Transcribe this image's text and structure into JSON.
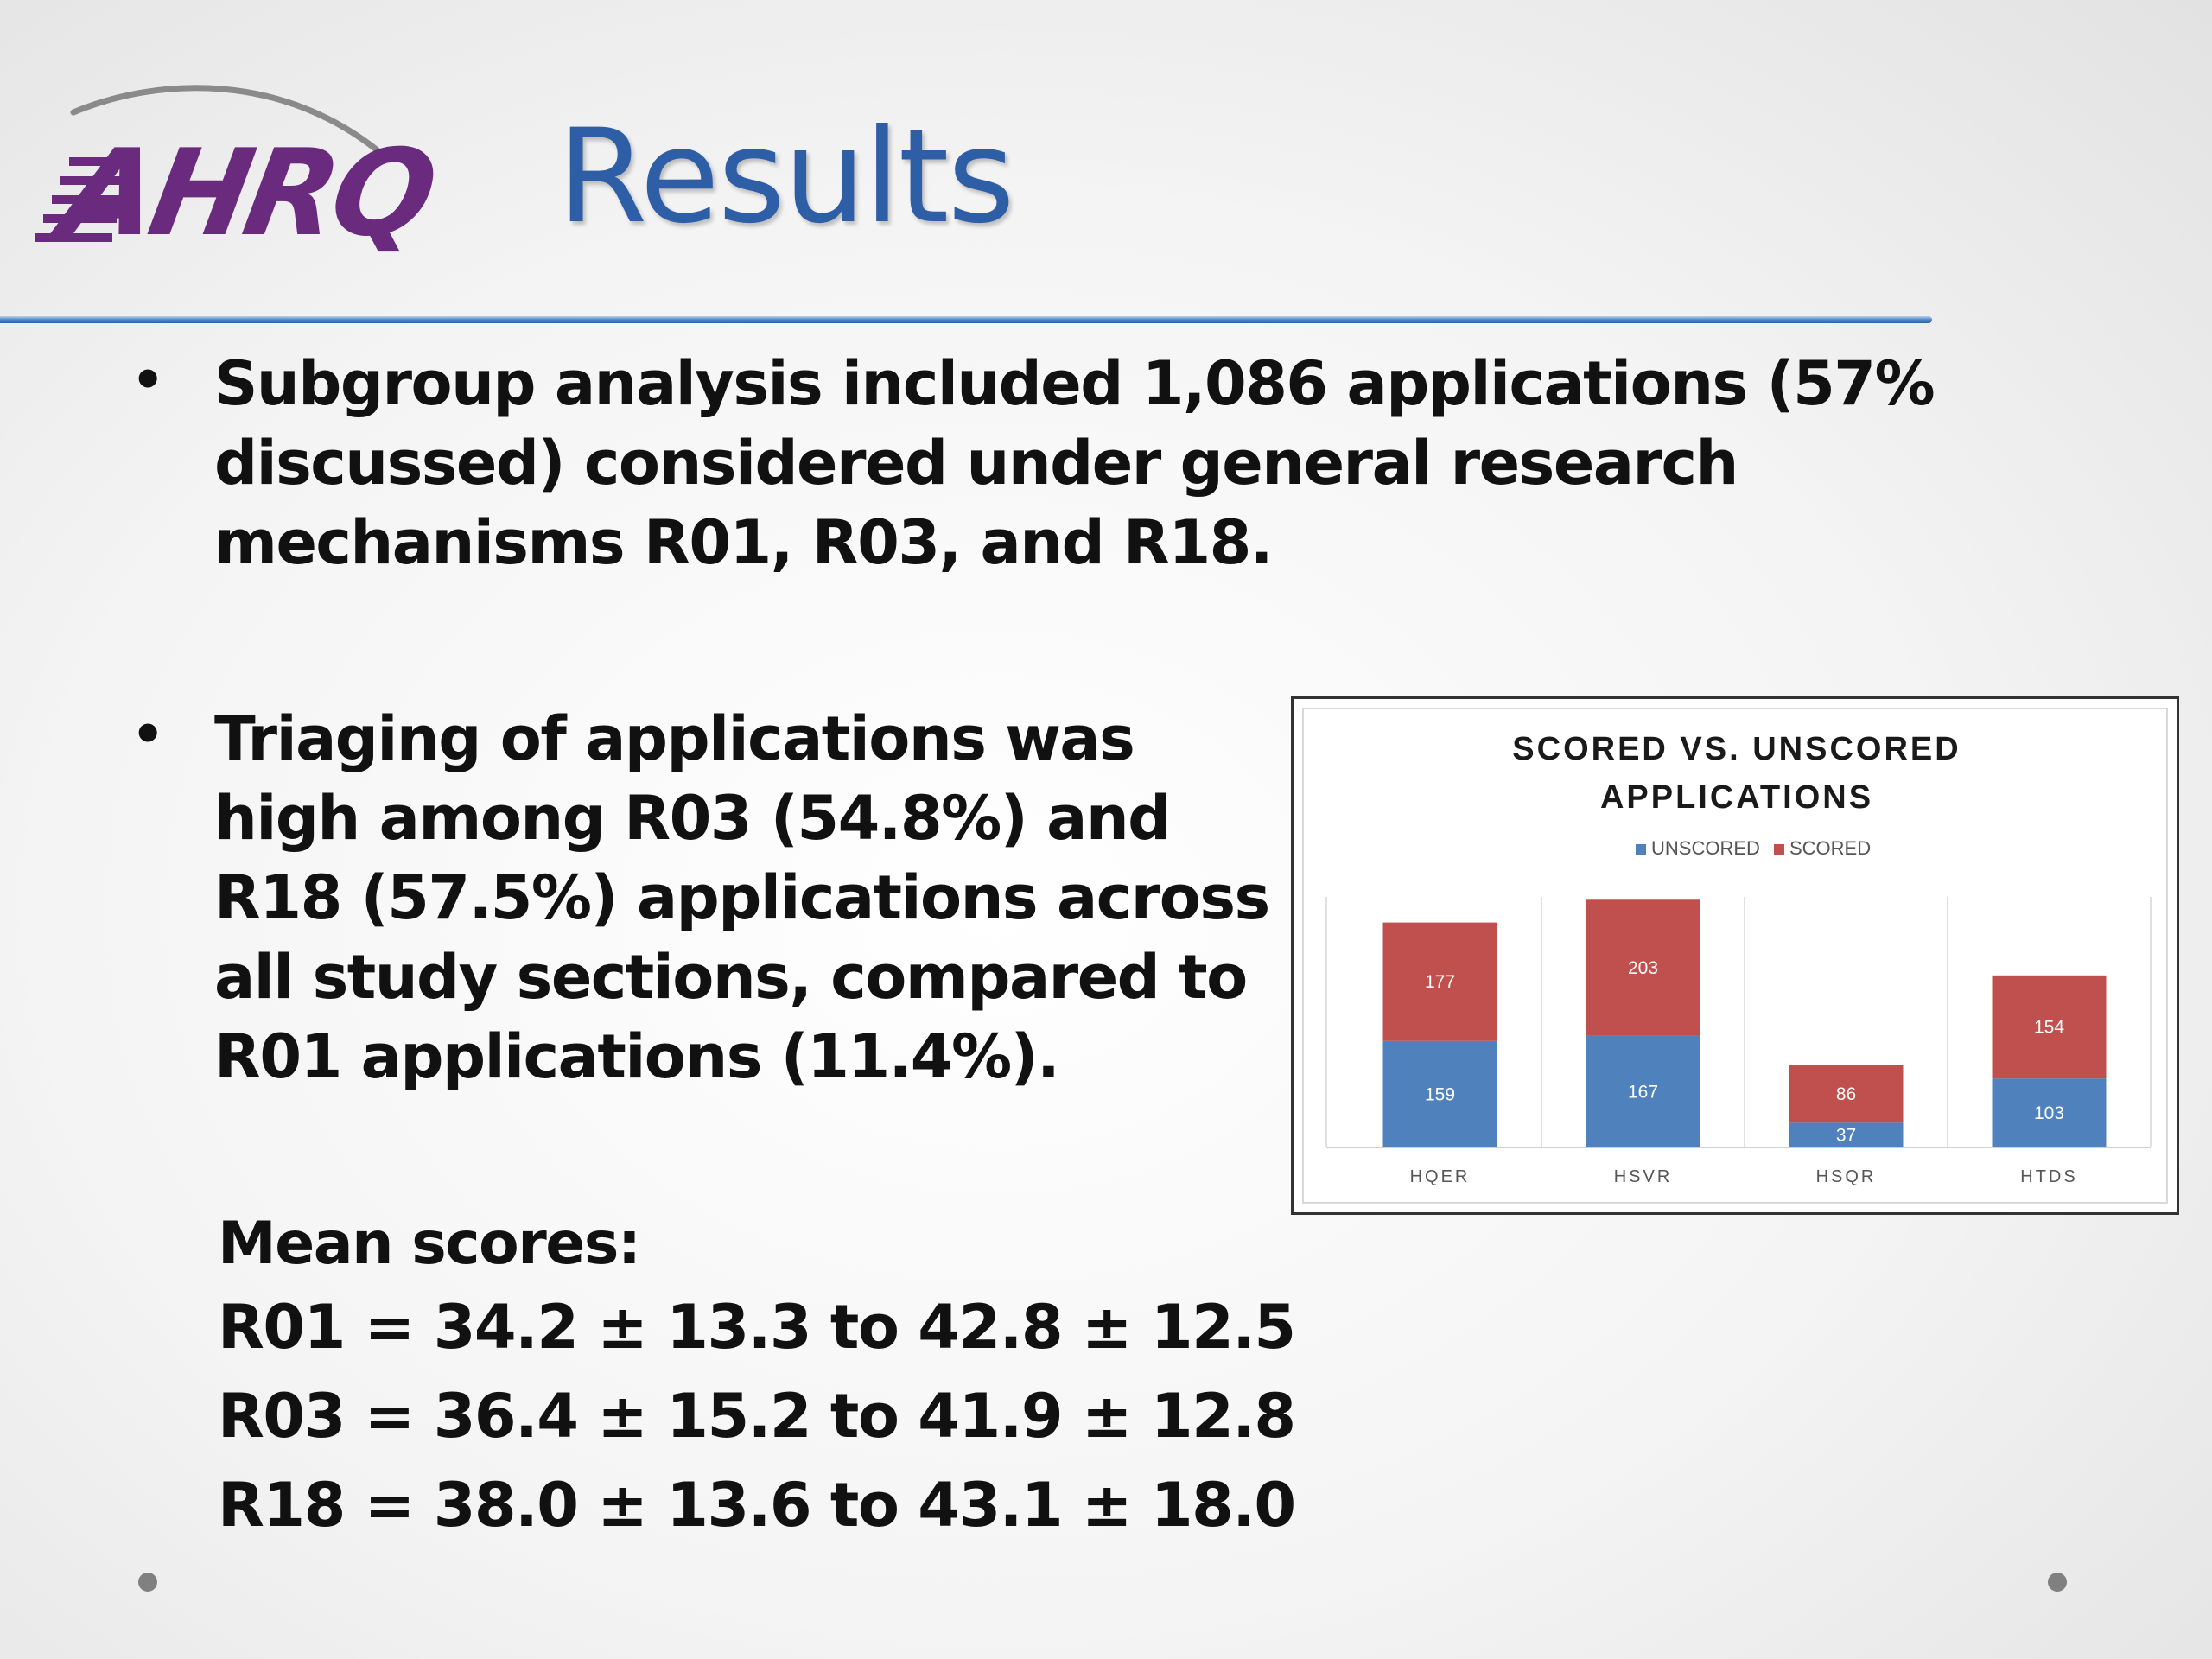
{
  "logo": {
    "text": "AHRQ",
    "color": "#6a2a7e"
  },
  "title": "Results",
  "bullets": [
    "Subgroup analysis included 1,086 applications (57% discussed) considered under general research mechanisms R01, R03, and R18.",
    "Triaging of applications was high among R03 (54.8%) and R18 (57.5%) applications across all study sections, compared to R01 applications (11.4%)."
  ],
  "mean_scores": {
    "heading": "Mean scores:",
    "lines": [
      "R01 = 34.2 ± 13.3 to 42.8 ± 12.5",
      "R03 = 36.4 ± 15.2 to 41.9 ± 12.8",
      "R18 = 38.0 ± 13.6 to 43.1 ± 18.0"
    ]
  },
  "chart_data": {
    "type": "bar",
    "stacked": true,
    "title": "SCORED VS. UNSCORED APPLICATIONS",
    "title_lines": [
      "SCORED VS. UNSCORED",
      "APPLICATIONS"
    ],
    "categories": [
      "HQER",
      "HSVR",
      "HSQR",
      "HTDS"
    ],
    "series": [
      {
        "name": "UNSCORED",
        "values": [
          159,
          167,
          37,
          103
        ],
        "color": "#4f81bd"
      },
      {
        "name": "SCORED",
        "values": [
          177,
          203,
          86,
          154
        ],
        "color": "#c0504d"
      }
    ],
    "legend_position": "top",
    "grid": false,
    "ylim": [
      0,
      400
    ]
  },
  "colors": {
    "title": "#2e5ea5",
    "rule": "#4a86c8",
    "text": "#111111"
  }
}
